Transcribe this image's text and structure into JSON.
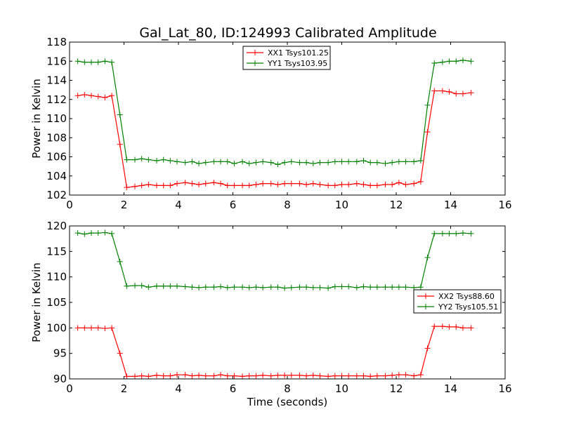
{
  "title": "Gal_Lat_80, ID:124993 Calibrated Amplitude",
  "chart_data": [
    {
      "type": "line",
      "ylabel": "Power in Kelvin",
      "xlabel": "",
      "xlim": [
        0,
        16
      ],
      "ylim": [
        102,
        118
      ],
      "xticks": [
        0,
        2,
        4,
        6,
        8,
        10,
        12,
        14,
        16
      ],
      "yticks": [
        102,
        104,
        106,
        108,
        110,
        112,
        114,
        116,
        118
      ],
      "legend_position": "top-center",
      "x": [
        0.3,
        0.55,
        0.8,
        1.05,
        1.3,
        1.55,
        1.85,
        2.1,
        2.4,
        2.65,
        2.9,
        3.2,
        3.45,
        3.7,
        3.95,
        4.25,
        4.5,
        4.75,
        5.0,
        5.3,
        5.55,
        5.8,
        6.05,
        6.35,
        6.6,
        6.85,
        7.1,
        7.4,
        7.65,
        7.9,
        8.15,
        8.45,
        8.7,
        8.95,
        9.2,
        9.5,
        9.75,
        10.0,
        10.25,
        10.55,
        10.8,
        11.05,
        11.3,
        11.6,
        11.85,
        12.1,
        12.35,
        12.65,
        12.9,
        13.15,
        13.4,
        13.7,
        13.95,
        14.2,
        14.45,
        14.75
      ],
      "series": [
        {
          "name": "XX1 Tsys101.25",
          "color": "#ff0000",
          "values": [
            112.4,
            112.5,
            112.4,
            112.3,
            112.2,
            112.4,
            107.3,
            102.8,
            102.9,
            103.0,
            103.1,
            103.0,
            103.0,
            103.0,
            103.2,
            103.3,
            103.2,
            103.1,
            103.2,
            103.3,
            103.2,
            103.0,
            103.0,
            103.0,
            103.0,
            103.1,
            103.2,
            103.2,
            103.1,
            103.2,
            103.2,
            103.2,
            103.1,
            103.2,
            103.1,
            103.0,
            103.0,
            103.1,
            103.1,
            103.2,
            103.1,
            103.0,
            103.0,
            103.1,
            103.1,
            103.3,
            103.1,
            103.2,
            103.4,
            108.6,
            112.9,
            112.9,
            112.8,
            112.6,
            112.6,
            112.7
          ]
        },
        {
          "name": "YY1 Tsys103.95",
          "color": "#008000",
          "values": [
            116.0,
            115.9,
            115.9,
            115.9,
            116.0,
            115.9,
            110.4,
            105.7,
            105.7,
            105.8,
            105.7,
            105.6,
            105.7,
            105.6,
            105.5,
            105.4,
            105.5,
            105.3,
            105.4,
            105.5,
            105.5,
            105.5,
            105.3,
            105.5,
            105.3,
            105.4,
            105.5,
            105.4,
            105.2,
            105.4,
            105.5,
            105.4,
            105.4,
            105.3,
            105.4,
            105.4,
            105.5,
            105.5,
            105.5,
            105.5,
            105.6,
            105.4,
            105.4,
            105.3,
            105.4,
            105.5,
            105.5,
            105.5,
            105.6,
            111.4,
            115.8,
            115.9,
            116.0,
            116.0,
            116.1,
            116.0
          ]
        }
      ]
    },
    {
      "type": "line",
      "ylabel": "Power in Kelvin",
      "xlabel": "Time (seconds)",
      "xlim": [
        0,
        16
      ],
      "ylim": [
        90,
        120
      ],
      "xticks": [
        0,
        2,
        4,
        6,
        8,
        10,
        12,
        14,
        16
      ],
      "yticks": [
        90,
        95,
        100,
        105,
        110,
        115,
        120
      ],
      "legend_position": "center-right",
      "x": [
        0.3,
        0.55,
        0.8,
        1.05,
        1.3,
        1.55,
        1.85,
        2.1,
        2.4,
        2.65,
        2.9,
        3.2,
        3.45,
        3.7,
        3.95,
        4.25,
        4.5,
        4.75,
        5.0,
        5.3,
        5.55,
        5.8,
        6.05,
        6.35,
        6.6,
        6.85,
        7.1,
        7.4,
        7.65,
        7.9,
        8.15,
        8.45,
        8.7,
        8.95,
        9.2,
        9.5,
        9.75,
        10.0,
        10.25,
        10.55,
        10.8,
        11.05,
        11.3,
        11.6,
        11.85,
        12.1,
        12.35,
        12.65,
        12.9,
        13.15,
        13.4,
        13.7,
        13.95,
        14.2,
        14.45,
        14.75
      ],
      "series": [
        {
          "name": "XX2 Tsys88.60",
          "color": "#ff0000",
          "values": [
            100.0,
            100.0,
            100.0,
            100.0,
            99.9,
            100.0,
            95.0,
            90.5,
            90.5,
            90.6,
            90.5,
            90.7,
            90.6,
            90.6,
            90.8,
            90.8,
            90.6,
            90.7,
            90.6,
            90.6,
            90.8,
            90.6,
            90.6,
            90.5,
            90.6,
            90.6,
            90.7,
            90.6,
            90.7,
            90.7,
            90.7,
            90.7,
            90.6,
            90.7,
            90.6,
            90.5,
            90.6,
            90.6,
            90.6,
            90.6,
            90.6,
            90.5,
            90.6,
            90.6,
            90.7,
            90.8,
            90.8,
            90.6,
            90.8,
            96.0,
            100.3,
            100.3,
            100.2,
            100.2,
            100.0,
            100.0
          ]
        },
        {
          "name": "YY2 Tsys105.51",
          "color": "#008000",
          "values": [
            118.6,
            118.4,
            118.6,
            118.6,
            118.7,
            118.5,
            113.0,
            108.2,
            108.3,
            108.3,
            108.0,
            108.2,
            108.2,
            108.2,
            108.2,
            108.1,
            108.0,
            107.9,
            108.0,
            108.0,
            108.1,
            107.9,
            108.0,
            108.0,
            107.9,
            108.0,
            107.9,
            108.0,
            108.0,
            107.8,
            107.9,
            108.0,
            108.0,
            107.9,
            107.9,
            107.8,
            108.1,
            108.1,
            108.1,
            107.9,
            108.1,
            108.0,
            108.0,
            108.0,
            108.0,
            108.0,
            108.0,
            107.9,
            108.0,
            113.8,
            118.5,
            118.5,
            118.5,
            118.5,
            118.6,
            118.5
          ]
        }
      ]
    }
  ]
}
